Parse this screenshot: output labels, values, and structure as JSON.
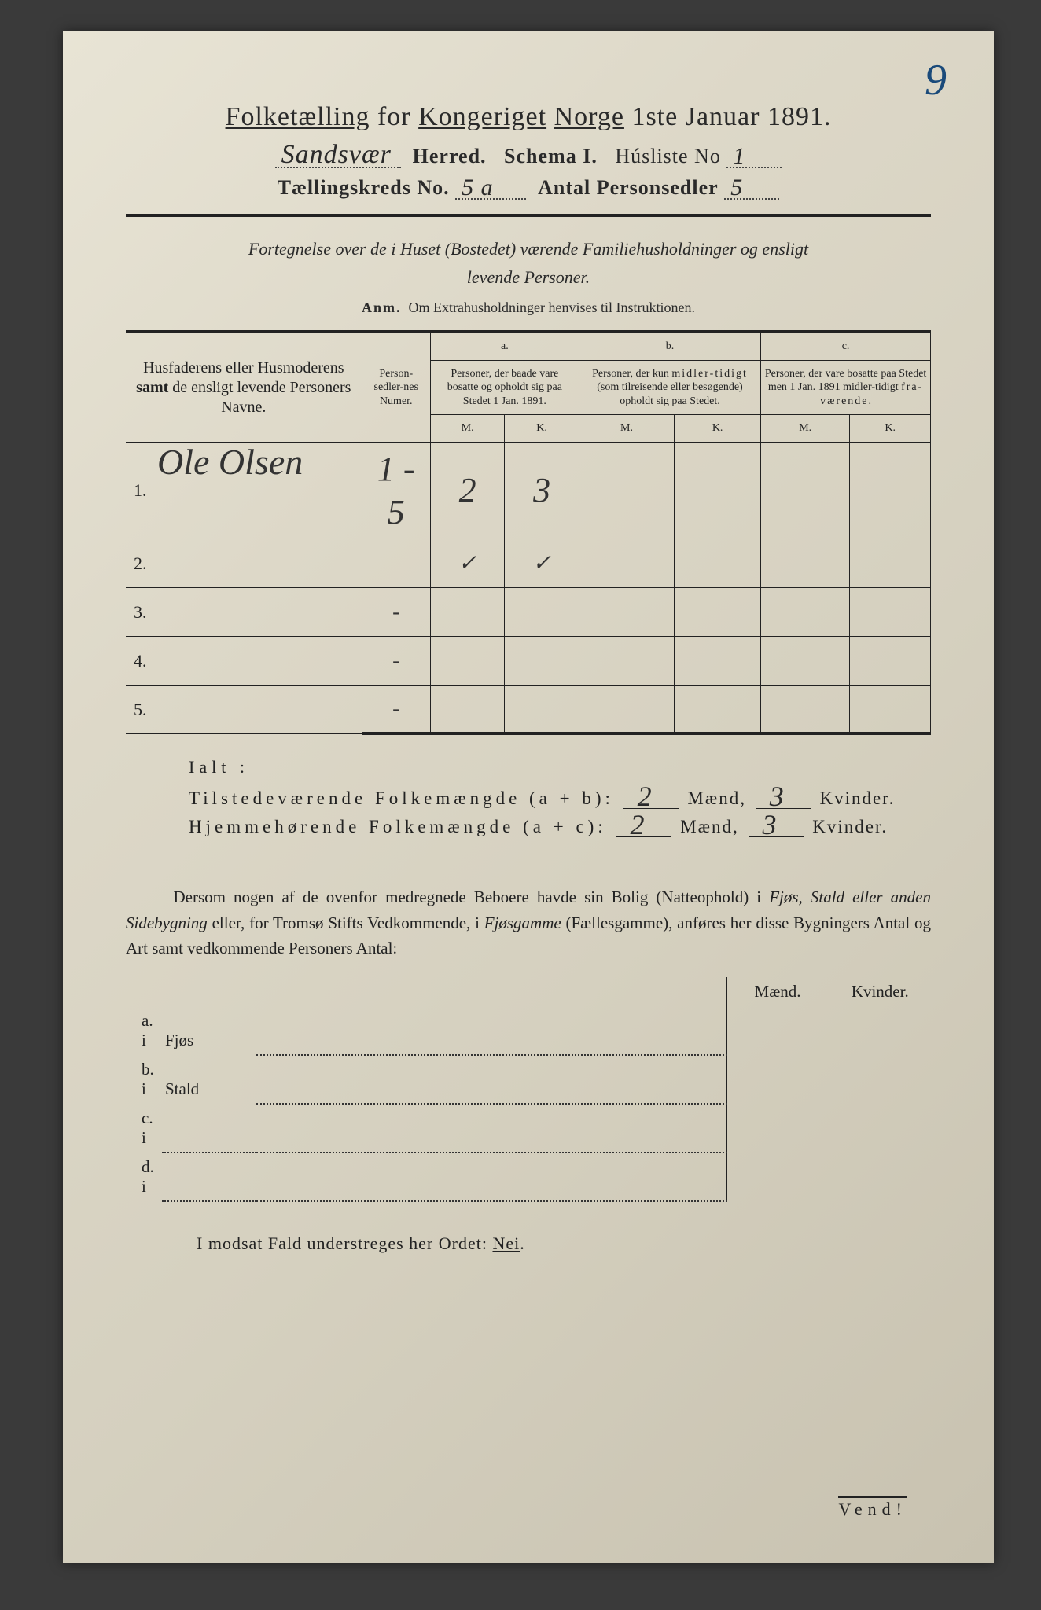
{
  "colors": {
    "paper_bg_start": "#e8e4d5",
    "paper_bg_end": "#c8c2b0",
    "ink": "#2a2a2a",
    "rule": "#222222",
    "blue_ink": "#1a4a7a",
    "outer_bg": "#3a3a3a"
  },
  "page_number_top": "9",
  "title": "Folketælling for Kongeriget Norge 1ste Januar 1891.",
  "header": {
    "herred_value": "Sandsvær",
    "herred_label": "Herred.",
    "schema_label": "Schema I.",
    "husliste_label": "Húsliste No",
    "husliste_value": "1",
    "kreds_label_pre": "Tællingskreds No.",
    "kreds_value": "5 a",
    "person_label": "Antal Personsedler",
    "person_value": "5"
  },
  "intro_line1": "Fortegnelse over de i Huset (Bostedet) værende Familiehusholdninger og ensligt",
  "intro_line2": "levende Personer.",
  "anm_label": "Anm.",
  "anm_text": "Om Extrahusholdninger henvises til Instruktionen.",
  "table": {
    "col_names": "Husfaderens eller Husmoderens <b>samt</b> de ensligt levende Personers Navne.",
    "col_numer": "Person-sedler-nes Numer.",
    "col_a_head": "a.",
    "col_a": "Personer, der baade vare bosatte og opholdt sig paa Stedet 1 Jan. 1891.",
    "col_b_head": "b.",
    "col_b": "Personer, der kun midlertidigt (som tilreisende eller besøgende) opholdt sig paa Stedet.",
    "col_c_head": "c.",
    "col_c": "Personer, der vare bosatte paa Stedet men 1 Jan. 1891 midlertidigt fraværende.",
    "m": "M.",
    "k": "K.",
    "rows": [
      {
        "n": "1.",
        "name": "Ole Olsen",
        "numer": "1 - 5",
        "a_m": "2",
        "a_k": "3",
        "b_m": "",
        "b_k": "",
        "c_m": "",
        "c_k": ""
      },
      {
        "n": "2.",
        "name": "",
        "numer": "",
        "a_m": "✓",
        "a_k": "✓",
        "b_m": "",
        "b_k": "",
        "c_m": "",
        "c_k": ""
      },
      {
        "n": "3.",
        "name": "",
        "numer": "-",
        "a_m": "",
        "a_k": "",
        "b_m": "",
        "b_k": "",
        "c_m": "",
        "c_k": ""
      },
      {
        "n": "4.",
        "name": "",
        "numer": "-",
        "a_m": "",
        "a_k": "",
        "b_m": "",
        "b_k": "",
        "c_m": "",
        "c_k": ""
      },
      {
        "n": "5.",
        "name": "",
        "numer": "-",
        "a_m": "",
        "a_k": "",
        "b_m": "",
        "b_k": "",
        "c_m": "",
        "c_k": ""
      }
    ]
  },
  "ialt": {
    "title": "Ialt :",
    "line1_label": "Tilstedeværende Folkemængde (a + b):",
    "line2_label": "Hjemmehørende Folkemængde (a + c):",
    "maend": "Mænd,",
    "kvinder": "Kvinder.",
    "l1_m": "2",
    "l1_k": "3",
    "l2_m": "2",
    "l2_k": "3"
  },
  "para": "Dersom nogen af de ovenfor medregnede Beboere havde sin Bolig (Natteophold) i <i>Fjøs, Stald eller anden Sidebygning</i> eller, for Tromsø Stifts Vedkommende, i <i>Fjøsgamme</i> (Fællesgamme), anføres her disse Bygningers Antal og Art samt vedkommende Personers Antal:",
  "lower": {
    "maend": "Mænd.",
    "kvinder": "Kvinder.",
    "rows": [
      {
        "lbl": "a. i",
        "word": "Fjøs"
      },
      {
        "lbl": "b. i",
        "word": "Stald"
      },
      {
        "lbl": "c. i",
        "word": ""
      },
      {
        "lbl": "d. i",
        "word": ""
      }
    ]
  },
  "nei": "I modsat Fald understreges her Ordet: Nei.",
  "vend": "Vend!"
}
